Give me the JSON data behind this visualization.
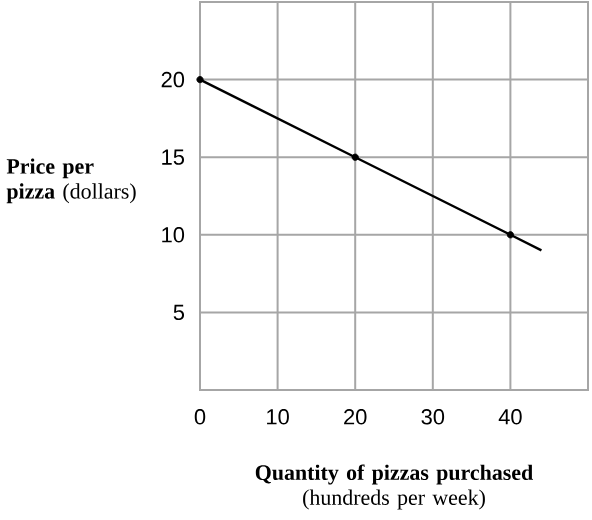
{
  "chart_data": {
    "type": "line",
    "xlabel": "**Quantity of pizzas purchased** (hundreds per week)",
    "ylabel": "**Price per pizza** (dollars)",
    "xlim": [
      0,
      50
    ],
    "ylim": [
      0,
      25
    ],
    "xticks": [
      0,
      10,
      20,
      30,
      40
    ],
    "yticks": [
      5,
      10,
      15,
      20
    ],
    "grid": true,
    "series": [
      {
        "x": [
          0,
          20,
          40,
          44
        ],
        "values": [
          20,
          15,
          10,
          9
        ],
        "color": "#000000",
        "marker": "none"
      },
      {
        "type": "scatter",
        "x": [
          0,
          20,
          40
        ],
        "values": [
          20,
          15,
          10
        ],
        "color": "#000000",
        "marker": "circle"
      }
    ]
  }
}
